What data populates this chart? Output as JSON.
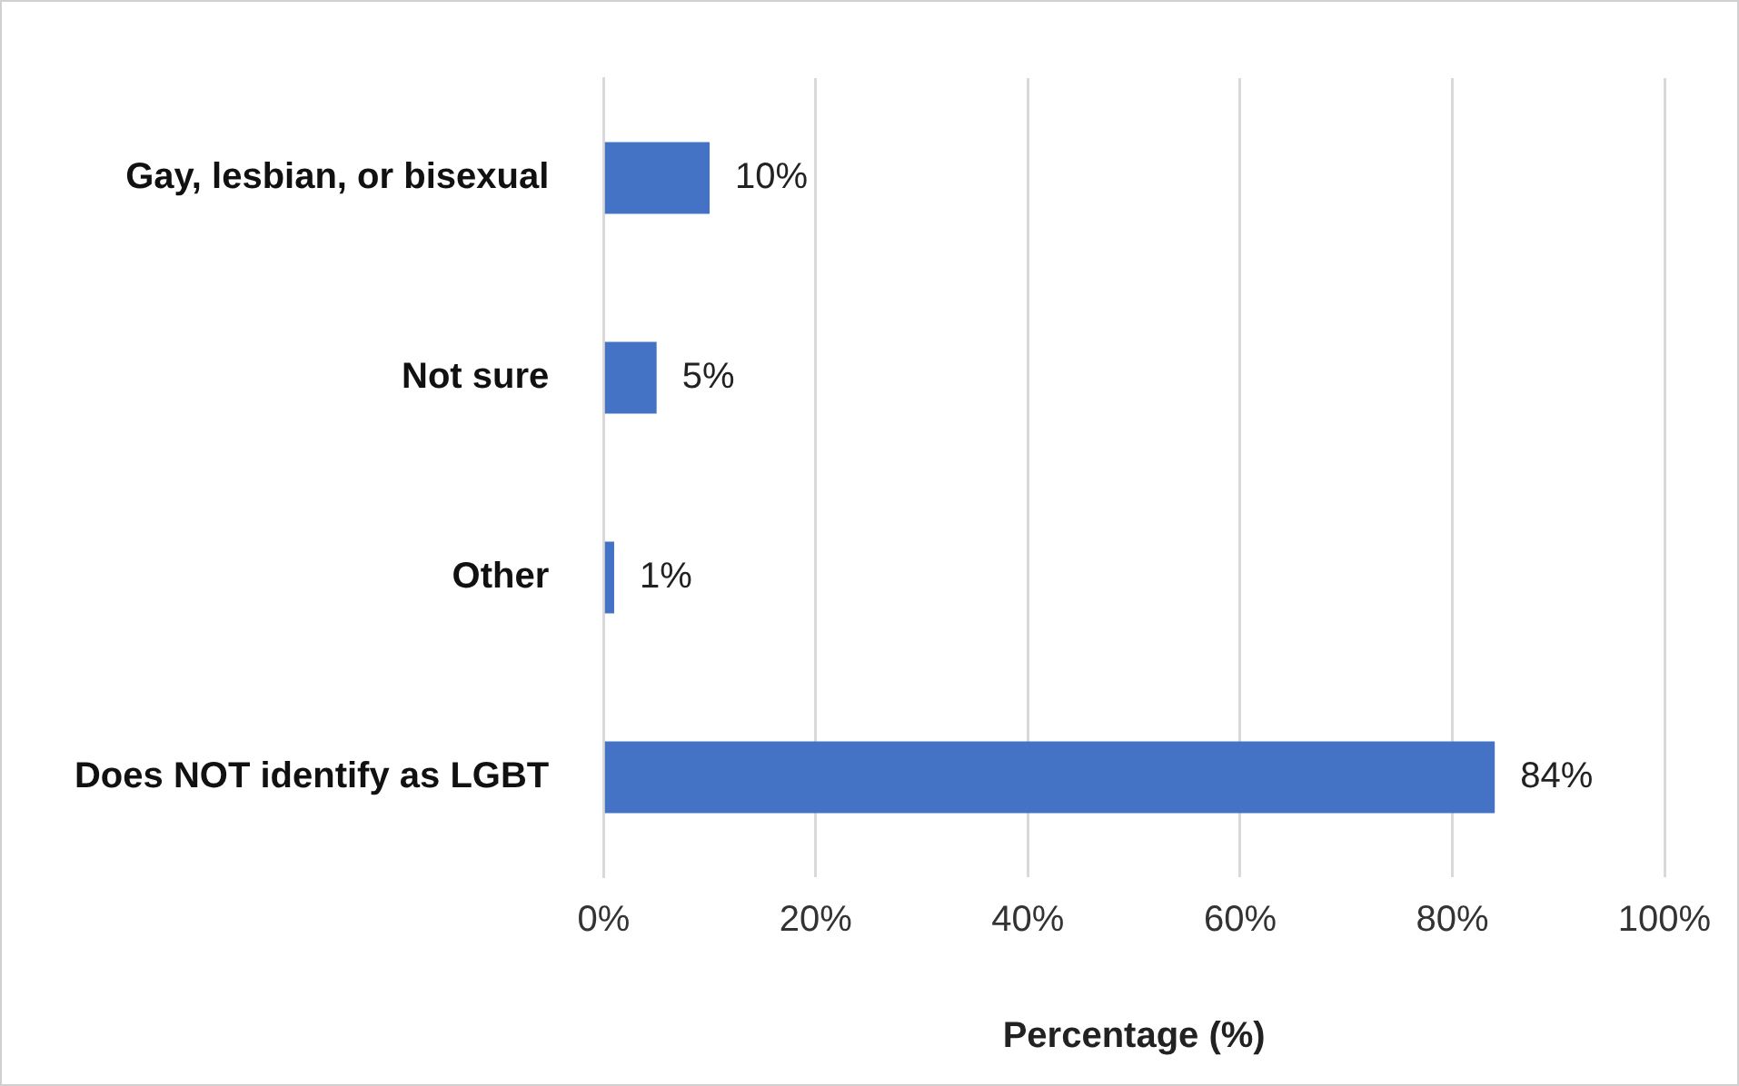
{
  "chart_data": {
    "type": "bar",
    "orientation": "horizontal",
    "xlabel": "Percentage (%)",
    "categories": [
      "Gay, lesbian, or bisexual",
      "Not sure",
      "Other",
      "Does NOT identify as LGBT"
    ],
    "values": [
      10,
      5,
      1,
      84
    ],
    "color": "#4472c4",
    "value_labels": [
      "10%",
      "5%",
      "1%",
      "84%"
    ],
    "xlim": [
      0,
      100
    ],
    "xticks": [
      {
        "value": 0,
        "label": "0%"
      },
      {
        "value": 20,
        "label": "20%"
      },
      {
        "value": 40,
        "label": "40%"
      },
      {
        "value": 60,
        "label": "60%"
      },
      {
        "value": 80,
        "label": "80%"
      },
      {
        "value": 100,
        "label": "100%"
      }
    ],
    "grid": "x",
    "legend": false
  }
}
